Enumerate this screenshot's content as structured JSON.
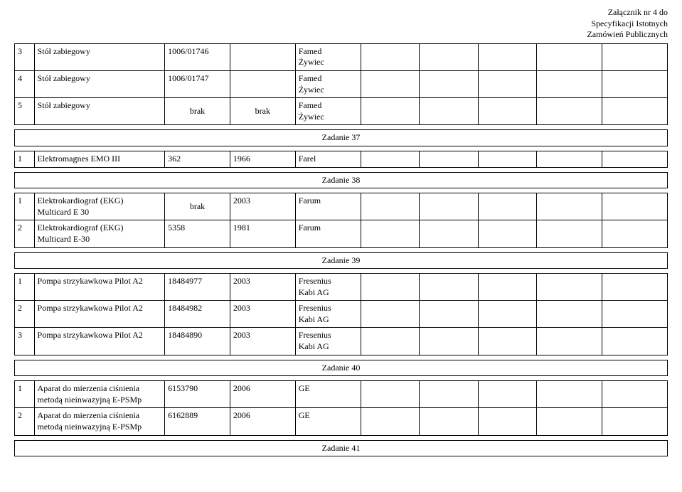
{
  "header": {
    "line1": "Załącznik nr 4 do",
    "line2": "Specyfikacji Istotnych",
    "line3": "Zamówień Publicznych"
  },
  "tables": {
    "group1": [
      {
        "no": "3",
        "name": "Stół zabiegowy",
        "col3": "1006/01746",
        "col4": "",
        "col5": "Famed\nŻywiec"
      },
      {
        "no": "4",
        "name": "Stół zabiegowy",
        "col3": "1006/01747",
        "col4": "",
        "col5": "Famed\nŻywiec"
      },
      {
        "no": "5",
        "name": "Stół zabiegowy",
        "col3": "brak",
        "col4": "brak",
        "col5": "Famed\nŻywiec"
      }
    ],
    "task37": "Zadanie 37",
    "group2": [
      {
        "no": "1",
        "name": "Elektromagnes EMO III",
        "col3": "362",
        "col4": "1966",
        "col5": "Farel"
      }
    ],
    "task38": "Zadanie 38",
    "group3": [
      {
        "no": "1",
        "name": "Elektrokardiograf (EKG)\nMulticard E 30",
        "col3": "brak",
        "col4": "2003",
        "col5": "Farum"
      },
      {
        "no": "2",
        "name": "Elektrokardiograf (EKG)\nMulticard E-30",
        "col3": "5358",
        "col4": "1981",
        "col5": "Farum"
      }
    ],
    "task39": "Zadanie 39",
    "group4": [
      {
        "no": "1",
        "name": "Pompa strzykawkowa Pilot A2",
        "col3": "18484977",
        "col4": "2003",
        "col5": "Fresenius\nKabi AG"
      },
      {
        "no": "2",
        "name": "Pompa strzykawkowa Pilot A2",
        "col3": "18484982",
        "col4": "2003",
        "col5": "Fresenius\nKabi AG"
      },
      {
        "no": "3",
        "name": "Pompa strzykawkowa Pilot A2",
        "col3": "18484890",
        "col4": "2003",
        "col5": "Fresenius\nKabi AG"
      }
    ],
    "task40": "Zadanie 40",
    "group5": [
      {
        "no": "1",
        "name": "Aparat do mierzenia ciśnienia\nmetodą nieinwazyjną E-PSMp",
        "col3": "6153790",
        "col4": "2006",
        "col5": "GE"
      },
      {
        "no": "2",
        "name": "Aparat do mierzenia ciśnienia\nmetodą nieinwazyjną E-PSMp",
        "col3": "6162889",
        "col4": "2006",
        "col5": "GE"
      }
    ],
    "task41": "Zadanie 41"
  }
}
